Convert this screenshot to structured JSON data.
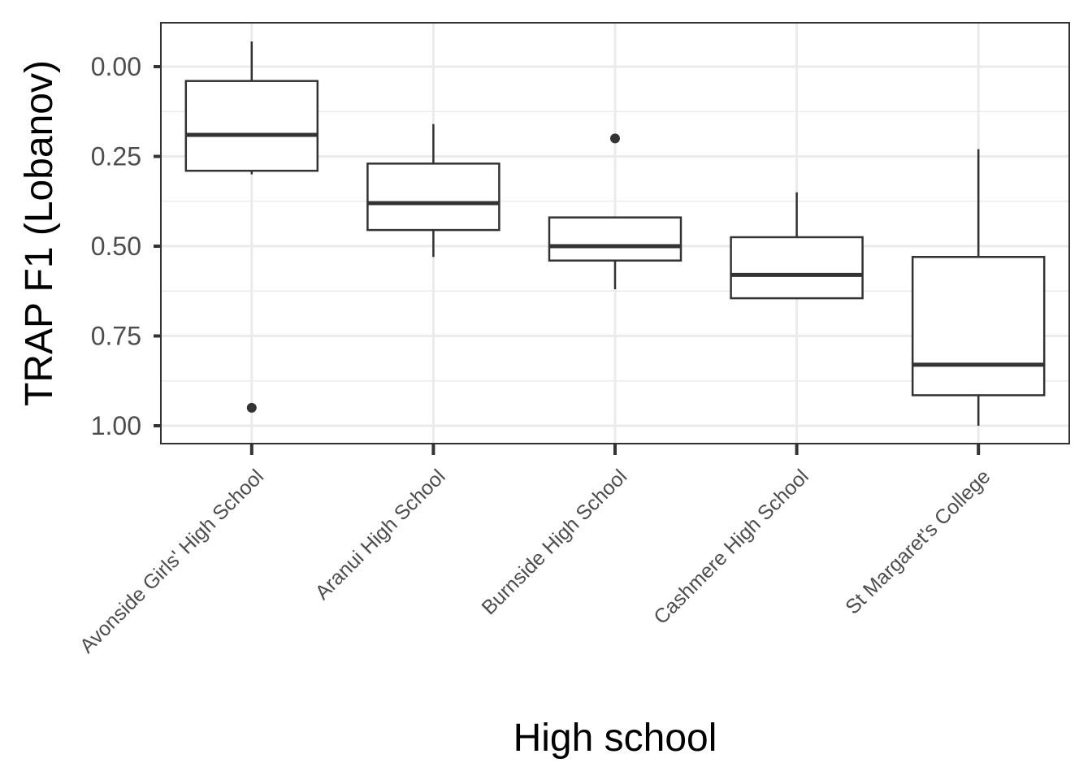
{
  "chart_data": {
    "type": "boxplot",
    "title": "",
    "xlabel": "High school",
    "ylabel": "TRAP F1 (Lobanov)",
    "y_reversed": true,
    "ylim": [
      -0.12,
      1.05
    ],
    "y_ticks": [
      0.0,
      0.25,
      0.5,
      0.75,
      1.0
    ],
    "y_tick_labels": [
      "0.00",
      "0.25",
      "0.50",
      "0.75",
      "1.00"
    ],
    "y_minor_ticks": [
      0.125,
      0.375,
      0.625,
      0.875
    ],
    "categories": [
      "Avonside Girls' High School",
      "Aranui High School",
      "Burnside High School",
      "Cashmere High School",
      "St Margaret's College"
    ],
    "boxes": [
      {
        "whisker_low": -0.07,
        "q1": 0.04,
        "median": 0.19,
        "q3": 0.29,
        "whisker_high": 0.3,
        "outliers": [
          0.95
        ]
      },
      {
        "whisker_low": 0.16,
        "q1": 0.27,
        "median": 0.38,
        "q3": 0.455,
        "whisker_high": 0.53,
        "outliers": []
      },
      {
        "whisker_low": 0.42,
        "q1": 0.42,
        "median": 0.5,
        "q3": 0.54,
        "whisker_high": 0.62,
        "outliers": [
          0.2
        ]
      },
      {
        "whisker_low": 0.35,
        "q1": 0.475,
        "median": 0.58,
        "q3": 0.645,
        "whisker_high": 0.645,
        "outliers": []
      },
      {
        "whisker_low": 0.23,
        "q1": 0.53,
        "median": 0.83,
        "q3": 0.915,
        "whisker_high": 1.0,
        "outliers": []
      }
    ],
    "grid": true,
    "legend": "none"
  }
}
